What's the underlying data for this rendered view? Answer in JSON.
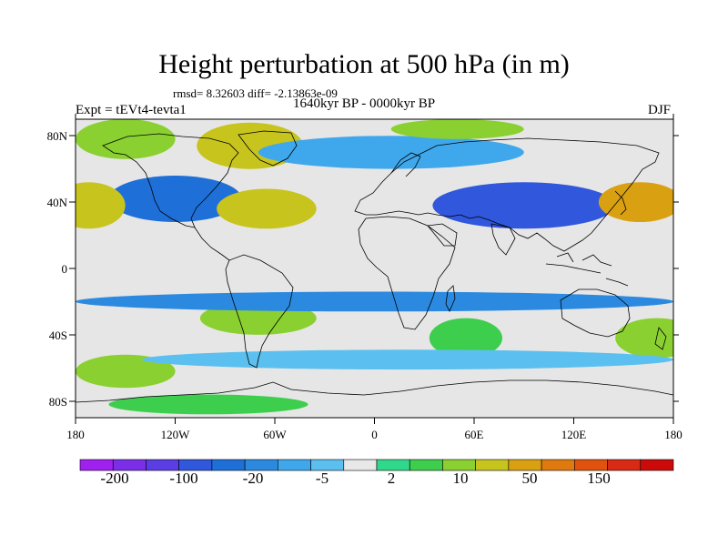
{
  "title": "Height perturbation at 500 hPa (in m)",
  "stats_text": "rmsd= 8.32603 diff= -2.13863e-09",
  "experiment_text": "Expt = tEVt4-tevta1",
  "period_text": "1640kyr BP - 0000kyr BP",
  "season_text": "DJF",
  "map": {
    "projection": "cylindrical-equidistant",
    "lon_range": [
      -180,
      180
    ],
    "lat_range": [
      -90,
      90
    ],
    "x_tick_labels": [
      "180",
      "120W",
      "60W",
      "0",
      "60E",
      "120E",
      "180"
    ],
    "y_tick_labels": [
      "80N",
      "40N",
      "0",
      "40S",
      "80S"
    ],
    "coastlines": "continental outlines drawn as thin black lines",
    "missing_color": "#e6e6e6"
  },
  "colorbar": {
    "colors": [
      "#a020f0",
      "#7b2ee8",
      "#5a3de3",
      "#3157dc",
      "#1f6fd8",
      "#2b8ae0",
      "#3fa8ec",
      "#5bc0ef",
      "#e8e8e8",
      "#30d88c",
      "#3ece4e",
      "#8ad030",
      "#c8c41e",
      "#d9a012",
      "#e07a0e",
      "#e0520d",
      "#d82a14",
      "#cc0a0a"
    ],
    "labels": [
      "-200",
      "-100",
      "-20",
      "-5",
      "2",
      "10",
      "50",
      "150"
    ]
  },
  "anomalies": [
    {
      "lon": -150,
      "lat": 78,
      "lon_r": 30,
      "lat_r": 12,
      "level": 11
    },
    {
      "lon": -75,
      "lat": 74,
      "lon_r": 32,
      "lat_r": 14,
      "level": 12
    },
    {
      "lon": -120,
      "lat": 42,
      "lon_r": 40,
      "lat_r": 14,
      "level": 4
    },
    {
      "lon": -65,
      "lat": 36,
      "lon_r": 30,
      "lat_r": 12,
      "level": 12
    },
    {
      "lon": -172,
      "lat": 38,
      "lon_r": 22,
      "lat_r": 14,
      "level": 12
    },
    {
      "lon": 90,
      "lat": 38,
      "lon_r": 55,
      "lat_r": 14,
      "level": 3
    },
    {
      "lon": 10,
      "lat": 70,
      "lon_r": 80,
      "lat_r": 10,
      "level": 6
    },
    {
      "lon": 160,
      "lat": 40,
      "lon_r": 25,
      "lat_r": 12,
      "level": 13
    },
    {
      "lon": 50,
      "lat": 84,
      "lon_r": 40,
      "lat_r": 6,
      "level": 11
    },
    {
      "lon": -70,
      "lat": -30,
      "lon_r": 35,
      "lat_r": 10,
      "level": 11
    },
    {
      "lon": 55,
      "lat": -42,
      "lon_r": 22,
      "lat_r": 12,
      "level": 10
    },
    {
      "lon": 170,
      "lat": -42,
      "lon_r": 25,
      "lat_r": 12,
      "level": 11
    },
    {
      "lon": -150,
      "lat": -62,
      "lon_r": 30,
      "lat_r": 10,
      "level": 11
    },
    {
      "lon": 0,
      "lat": -20,
      "lon_r": 180,
      "lat_r": 6,
      "level": 5
    },
    {
      "lon": 20,
      "lat": -55,
      "lon_r": 160,
      "lat_r": 6,
      "level": 7
    },
    {
      "lon": -100,
      "lat": -82,
      "lon_r": 60,
      "lat_r": 6,
      "level": 10
    }
  ]
}
